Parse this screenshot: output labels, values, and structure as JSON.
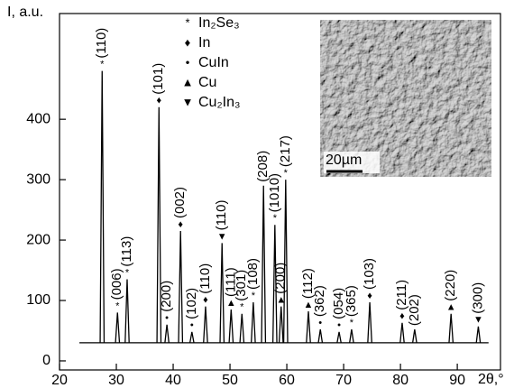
{
  "chart_data": {
    "type": "xrd",
    "ylabel": "I, a.u.",
    "xlabel": "2θ,°",
    "xlim": [
      20,
      97.6
    ],
    "ylim": [
      -15,
      575
    ],
    "xticks": [
      20,
      30,
      40,
      50,
      60,
      70,
      80,
      90
    ],
    "yticks": [
      0,
      100,
      200,
      300,
      400
    ],
    "color": "#000000",
    "background": {
      "x": [
        23.5,
        95.5
      ],
      "value": 30
    },
    "legend": [
      {
        "symbol": "*",
        "name": "In₂Se₃"
      },
      {
        "symbol": "♦",
        "name": "In"
      },
      {
        "symbol": "•",
        "name": "CuIn"
      },
      {
        "symbol": "▲",
        "name": "Cu"
      },
      {
        "symbol": "▼",
        "name": "Cu₂In₃"
      }
    ],
    "x": [
      27.5,
      30.2,
      31.9,
      37.5,
      38.9,
      41.3,
      43.3,
      45.7,
      48.6,
      50.2,
      52.1,
      54.1,
      55.9,
      57.9,
      59.0,
      59.8,
      63.8,
      65.9,
      69.2,
      71.4,
      74.6,
      80.3,
      82.5,
      88.9,
      93.7
    ],
    "values": [
      480,
      80,
      135,
      420,
      60,
      215,
      48,
      90,
      195,
      85,
      78,
      97,
      290,
      225,
      90,
      300,
      82,
      52,
      48,
      52,
      97,
      63,
      52,
      78,
      57
    ],
    "labels": [
      "(110)",
      "(006)",
      "(113)",
      "(101)",
      "(200)",
      "(002)",
      "(102)",
      "(110)",
      "(110)",
      "(111)",
      "(301)",
      "(108)",
      "(208)",
      "(1010)",
      "(200)",
      "(217)",
      "(112)",
      "(362)",
      "(054)",
      "(365)",
      "(103)",
      "(211)",
      "(202)",
      "(220)",
      "(300)"
    ],
    "phases": [
      0,
      0,
      0,
      1,
      2,
      1,
      2,
      1,
      4,
      3,
      0,
      0,
      null,
      0,
      3,
      0,
      3,
      2,
      2,
      0,
      1,
      1,
      null,
      3,
      4
    ],
    "inset": {
      "scale_label": "20µm"
    }
  }
}
